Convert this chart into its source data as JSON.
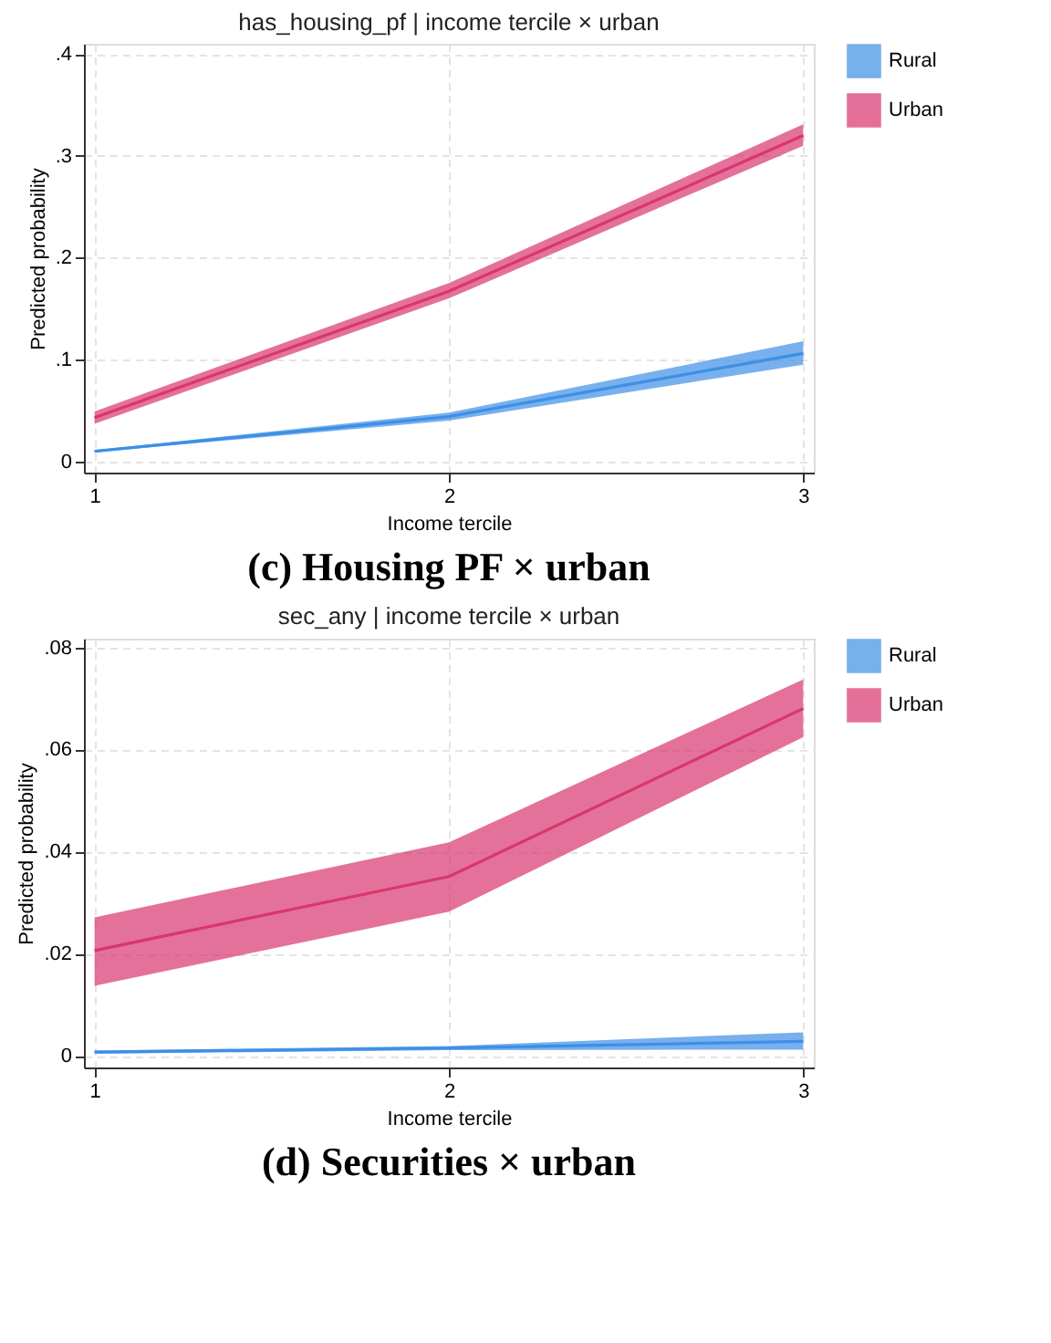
{
  "chart_data": [
    {
      "type": "line",
      "title": "has_housing_pf | income tercile × urban",
      "xlabel": "Income tercile",
      "ylabel": "Predicted probability",
      "annotations": [
        "(c) Housing PF × urban"
      ],
      "x": [
        1,
        2,
        3
      ],
      "xlim": [
        0.97,
        3.03
      ],
      "xticks": [
        1,
        2,
        3
      ],
      "ylim": [
        -0.011,
        0.41
      ],
      "yticks": [
        0,
        {
          "value": 0.1,
          "label": ".1"
        },
        {
          "value": 0.2,
          "label": ".2"
        },
        {
          "value": 0.3,
          "label": ".3"
        },
        {
          "value": 0.4,
          "label": ".4"
        }
      ],
      "grid": true,
      "legend": "right",
      "marker": "none",
      "line_style": "solid",
      "series": [
        {
          "name": "Rural",
          "color": "#3d8fe6",
          "values": [
            0.01,
            0.044,
            0.106
          ],
          "lower": [
            0.009,
            0.04,
            0.095
          ],
          "upper": [
            0.011,
            0.048,
            0.118
          ]
        },
        {
          "name": "Urban",
          "color": "#d9356e",
          "values": [
            0.043,
            0.167,
            0.32
          ],
          "lower": [
            0.037,
            0.16,
            0.31
          ],
          "upper": [
            0.049,
            0.175,
            0.331
          ]
        }
      ]
    },
    {
      "type": "line",
      "title": "sec_any | income tercile × urban",
      "xlabel": "Income tercile",
      "ylabel": "Predicted probability",
      "annotations": [
        "(d) Securities × urban"
      ],
      "x": [
        1,
        2,
        3
      ],
      "xlim": [
        0.97,
        3.03
      ],
      "xticks": [
        1,
        2,
        3
      ],
      "ylim": [
        -0.0023,
        0.0817
      ],
      "yticks": [
        0,
        {
          "value": 0.02,
          "label": ".02"
        },
        {
          "value": 0.04,
          "label": ".04"
        },
        {
          "value": 0.06,
          "label": ".06"
        },
        {
          "value": 0.08,
          "label": ".08"
        }
      ],
      "grid": true,
      "legend": "right",
      "marker": "none",
      "line_style": "solid",
      "series": [
        {
          "name": "Rural",
          "color": "#3d8fe6",
          "values": [
            0.0007,
            0.0015,
            0.0028
          ],
          "lower": [
            0.0004,
            0.0011,
            0.0012
          ],
          "upper": [
            0.001,
            0.0019,
            0.0046
          ]
        },
        {
          "name": "Urban",
          "color": "#d9356e",
          "values": [
            0.0206,
            0.0351,
            0.068
          ],
          "lower": [
            0.0137,
            0.0282,
            0.0624
          ],
          "upper": [
            0.0271,
            0.0418,
            0.0737
          ]
        }
      ]
    }
  ]
}
